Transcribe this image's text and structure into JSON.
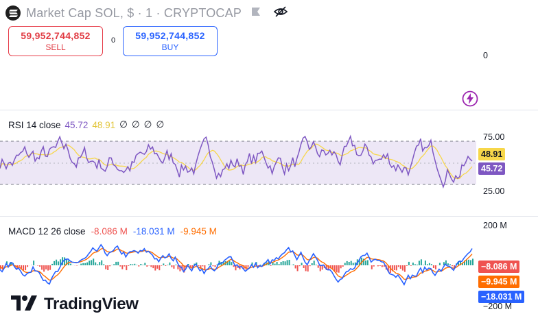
{
  "header": {
    "title": "Market Cap SOL, $ · 1 · CRYPTOCAP",
    "logo_icon": "solana-logo-icon",
    "flag_icon": "flag-icon",
    "visibility_icon": "eye-crossed-icon"
  },
  "trade": {
    "sell_price": "59,952,744,852",
    "sell_label": "SELL",
    "spread": "0",
    "buy_price": "59,952,744,852",
    "buy_label": "BUY"
  },
  "main_axis": {
    "zero_label": "0"
  },
  "rsi": {
    "label": "RSI 14 close",
    "value1": "45.72",
    "value2": "48.91",
    "extras": [
      "∅",
      "∅",
      "∅",
      "∅"
    ],
    "upper_label": "75.00",
    "lower_label": "25.00",
    "tag_value2": "48.91",
    "tag_value1": "45.72",
    "colors": {
      "rsi": "#7e57c2",
      "ma": "#f7d74a",
      "band": "#ede7f6"
    }
  },
  "macd": {
    "label": "MACD 12 26 close",
    "hist_value": "-8.086 M",
    "macd_value": "-18.031 M",
    "signal_value": "-9.945 M",
    "top_label": "200 M",
    "bottom_label": "−200 M",
    "tag_hist": "−8.086 M",
    "tag_signal": "−9.945 M",
    "tag_macd": "−18.031 M",
    "colors": {
      "macd": "#2962ff",
      "signal": "#ff6d00",
      "hist_pos": "#26a69a",
      "hist_neg": "#ef5350"
    }
  },
  "branding": {
    "name": "TradingView",
    "logo_icon": "tradingview-logo-icon"
  },
  "tool": {
    "icon": "lightning-icon"
  }
}
